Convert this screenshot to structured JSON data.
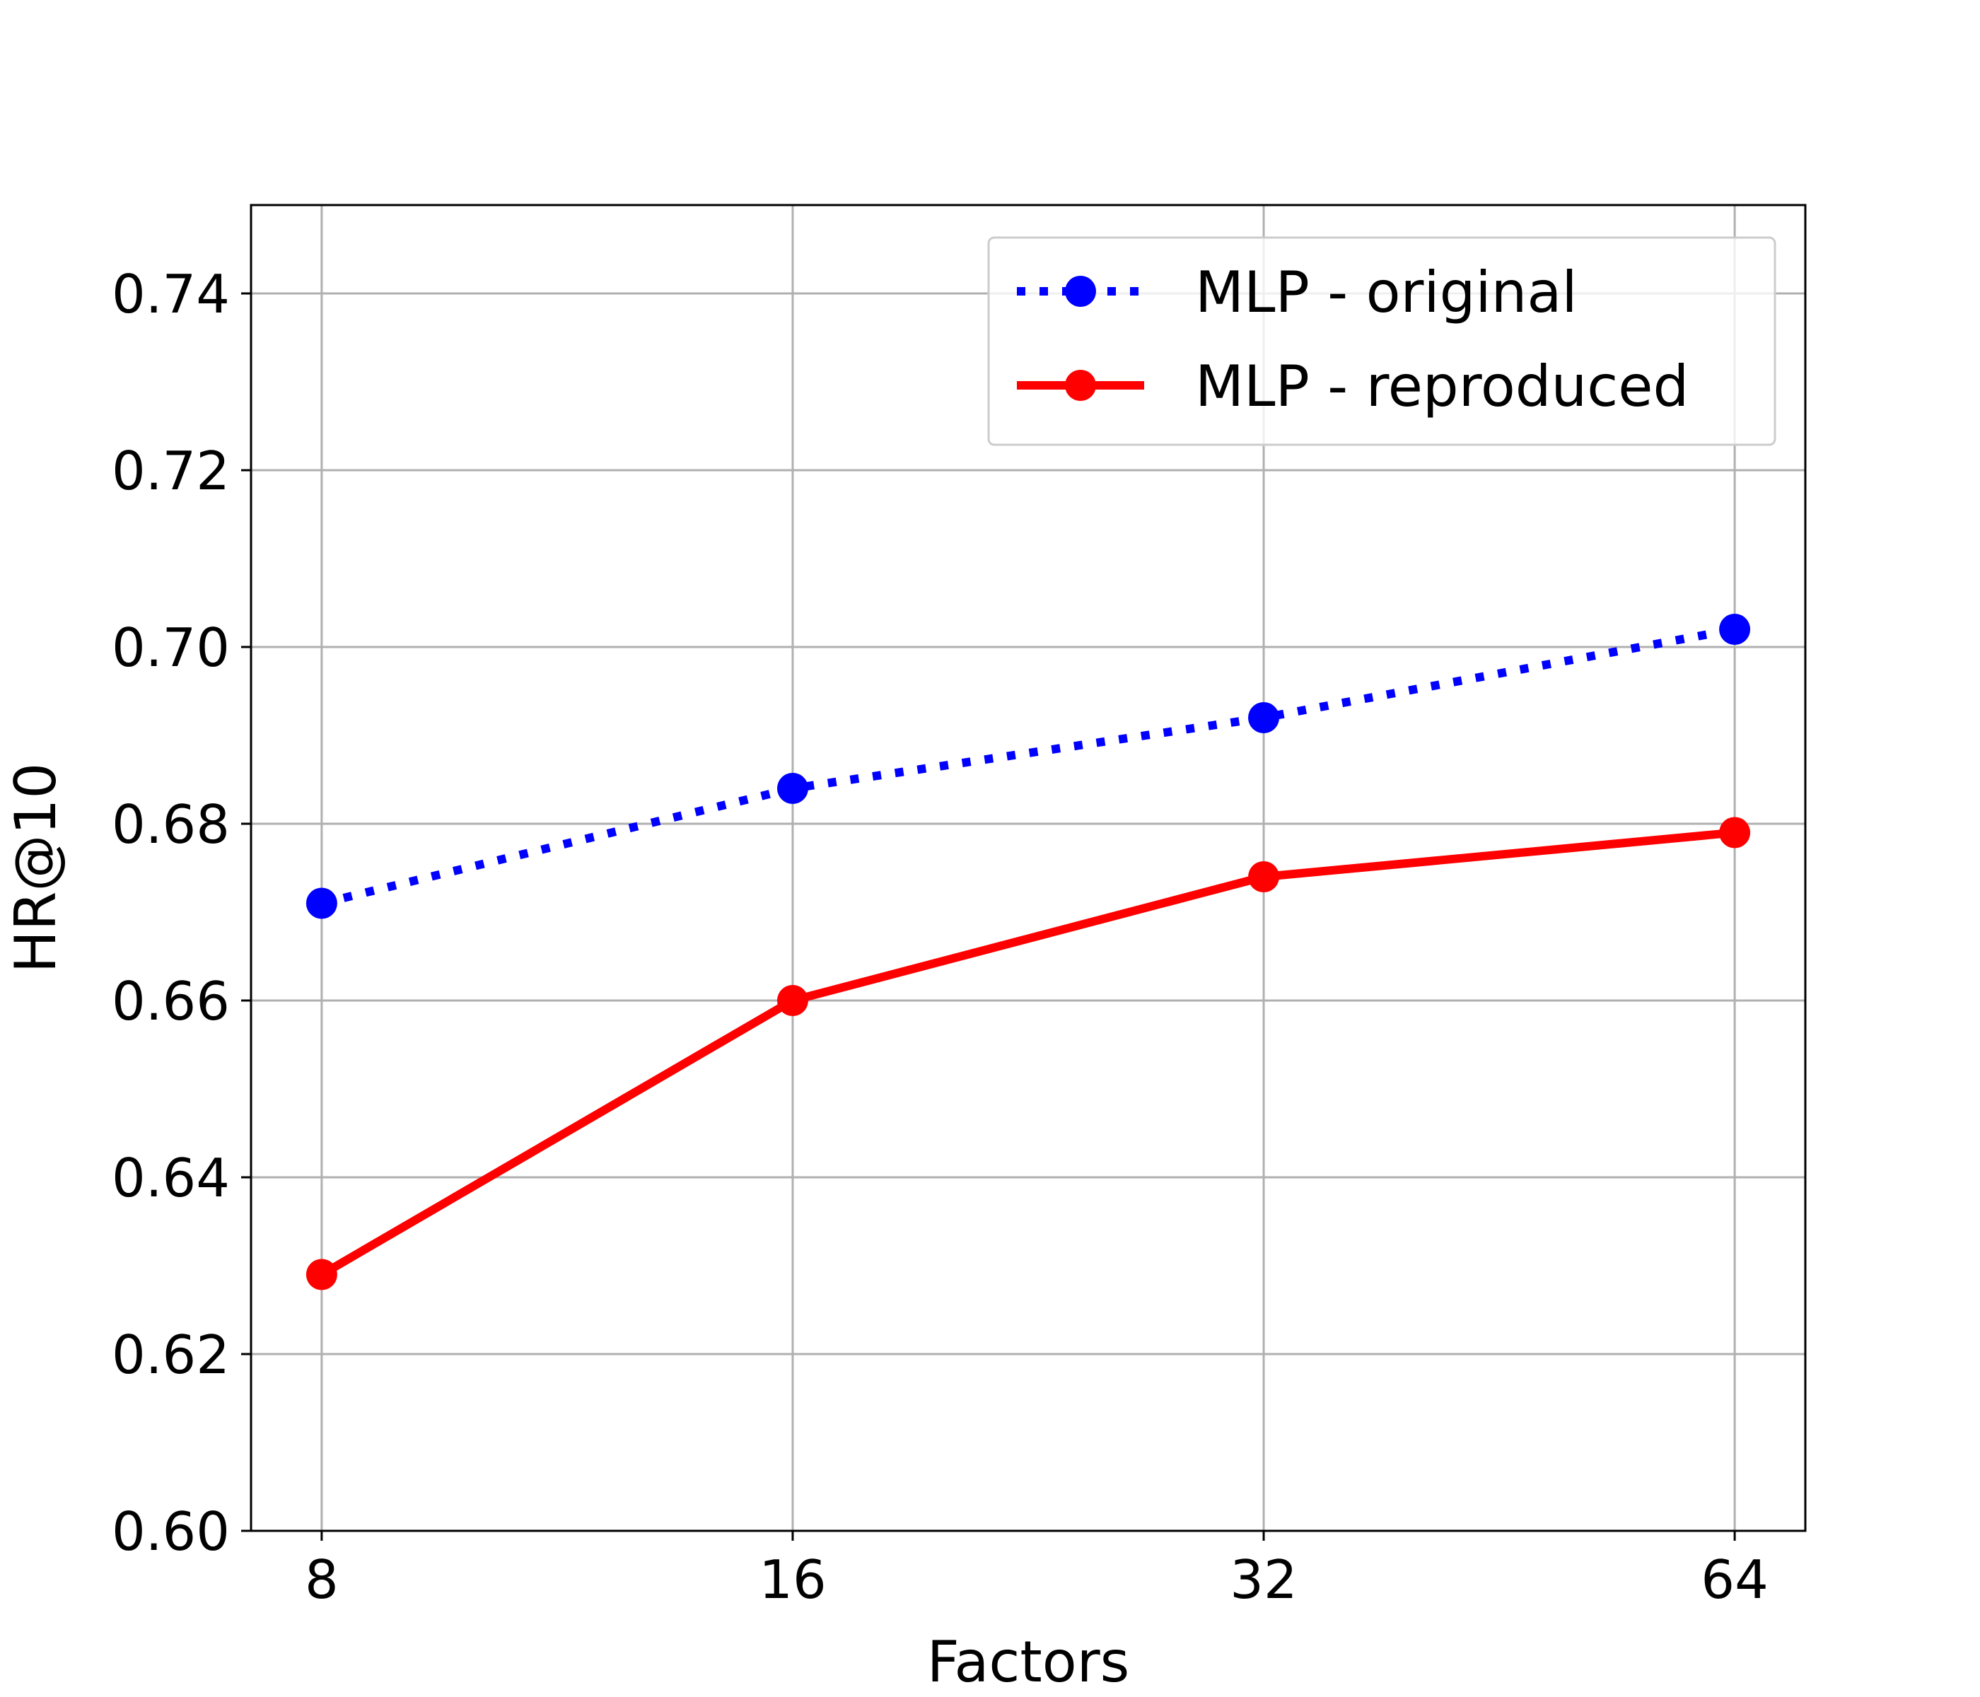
{
  "chart_data": {
    "type": "line",
    "x": [
      8,
      16,
      32,
      64
    ],
    "x_tick_labels": [
      "8",
      "16",
      "32",
      "64"
    ],
    "y_tick_labels": [
      "0.60",
      "0.62",
      "0.64",
      "0.66",
      "0.68",
      "0.70",
      "0.72",
      "0.74"
    ],
    "y_ticks": [
      0.6,
      0.62,
      0.64,
      0.66,
      0.68,
      0.7,
      0.72,
      0.74
    ],
    "ylim": [
      0.6,
      0.75
    ],
    "x_scale": "log2",
    "xlabel": "Factors",
    "ylabel": "HR@10",
    "grid": true,
    "legend_position": "top-right",
    "series": [
      {
        "name": "MLP - original",
        "values": [
          0.671,
          0.684,
          0.692,
          0.702
        ],
        "color": "#0000ff",
        "line_style": "dotted",
        "marker": "circle"
      },
      {
        "name": "MLP - reproduced",
        "values": [
          0.629,
          0.66,
          0.674,
          0.679
        ],
        "color": "#ff0000",
        "line_style": "solid",
        "marker": "circle"
      }
    ]
  }
}
